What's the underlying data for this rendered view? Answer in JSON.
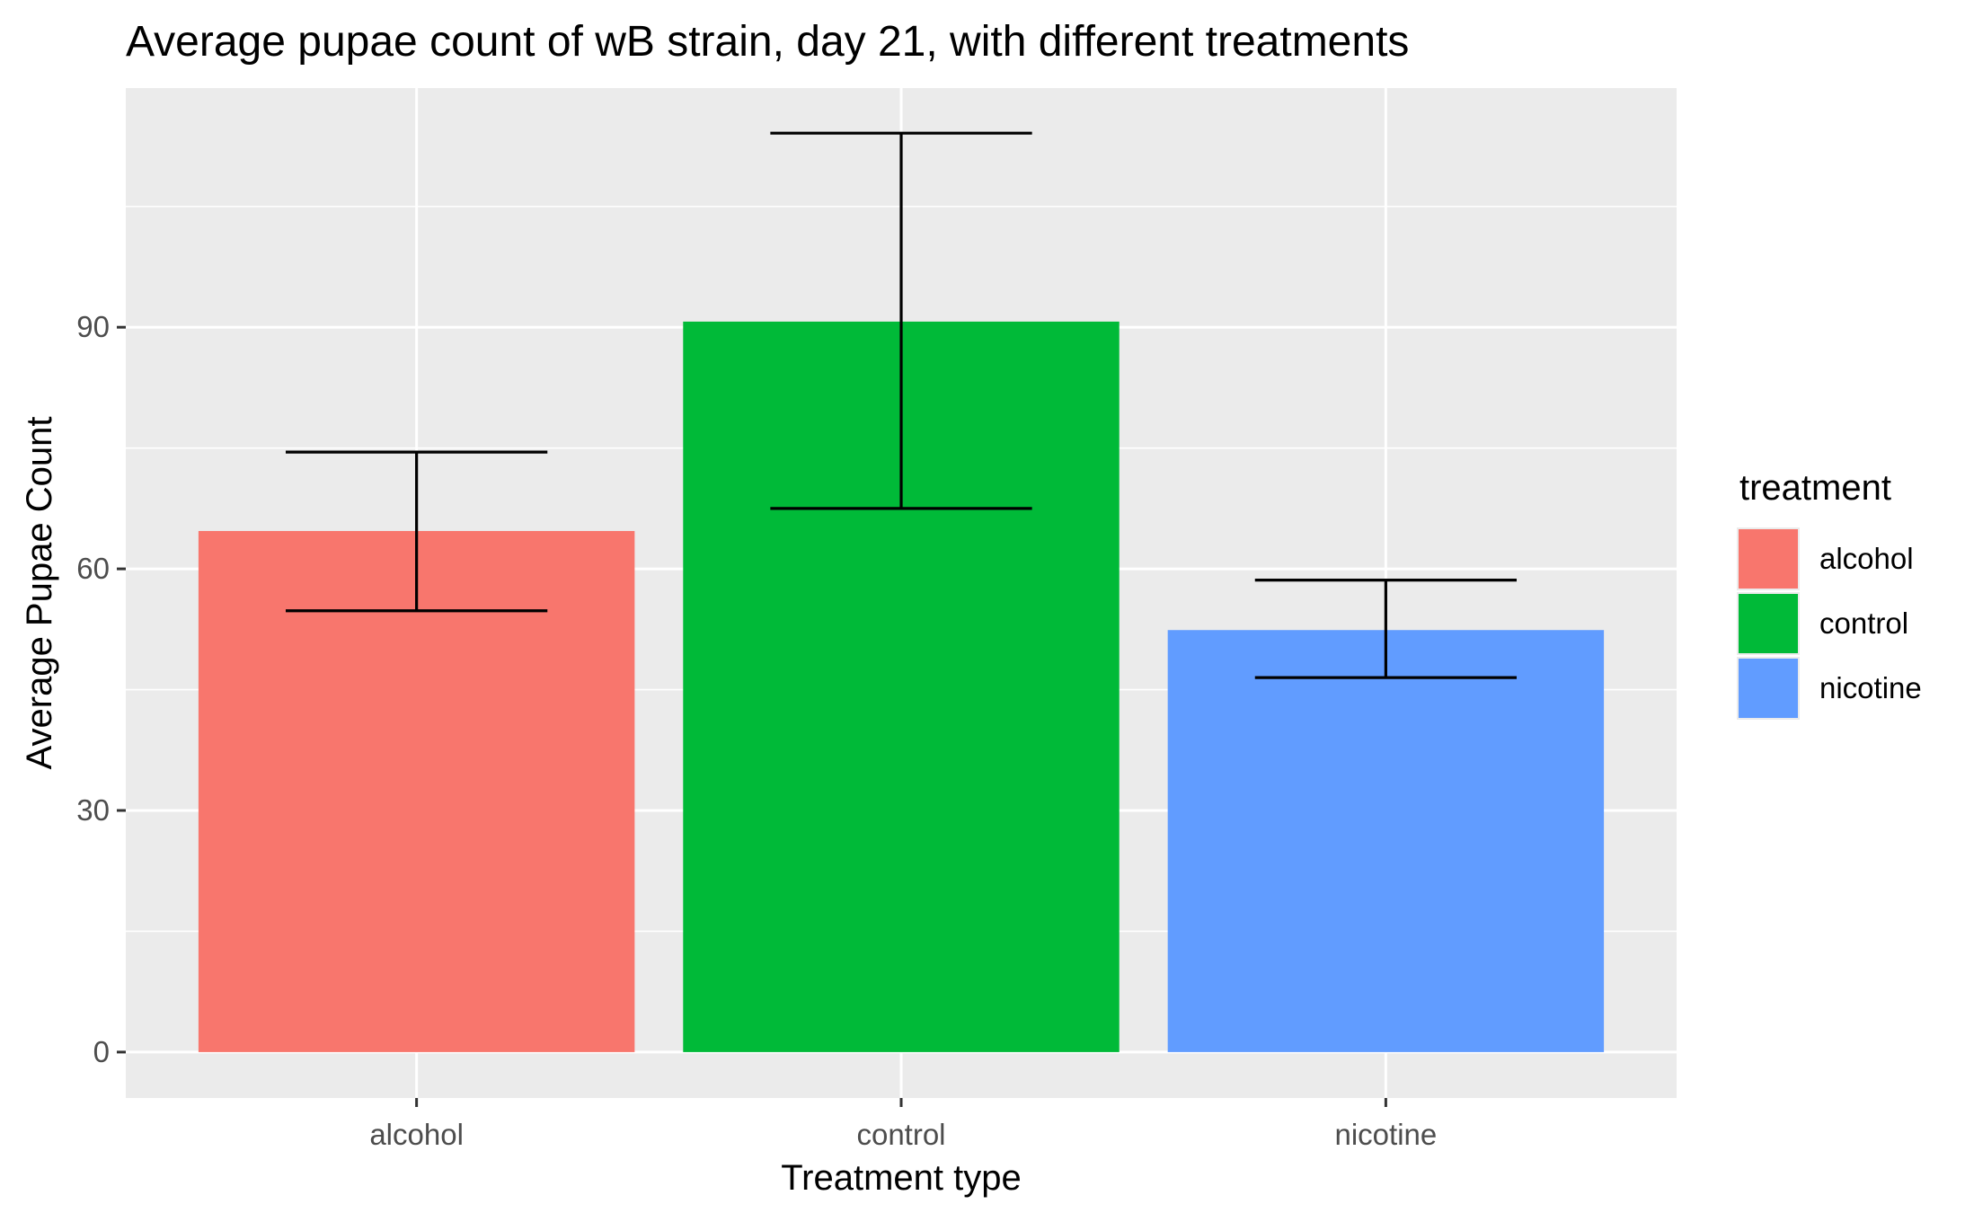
{
  "chart_data": {
    "type": "bar",
    "title": "Average pupae count of wB strain, day 21, with different treatments",
    "xlabel": "Treatment type",
    "ylabel": "Average Pupae Count",
    "categories": [
      "alcohol",
      "control",
      "nicotine"
    ],
    "values": [
      64.7,
      90.7,
      52.4
    ],
    "error_low": [
      54.8,
      67.5,
      46.5
    ],
    "error_high": [
      74.5,
      114.1,
      58.6
    ],
    "ylim": [
      -5.7,
      119.7
    ],
    "yticks": [
      0,
      30,
      60,
      90
    ],
    "ytick_labels": [
      "0",
      "30",
      "60",
      "90"
    ],
    "grid": true,
    "legend": {
      "title": "treatment",
      "position": "right",
      "entries": [
        "alcohol",
        "control",
        "nicotine"
      ]
    },
    "colors": [
      "#F8766D",
      "#00BA38",
      "#619CFF"
    ],
    "panel_background": "#EBEBEB",
    "grid_color": "#FFFFFF",
    "errorbar_color": "#000000"
  }
}
